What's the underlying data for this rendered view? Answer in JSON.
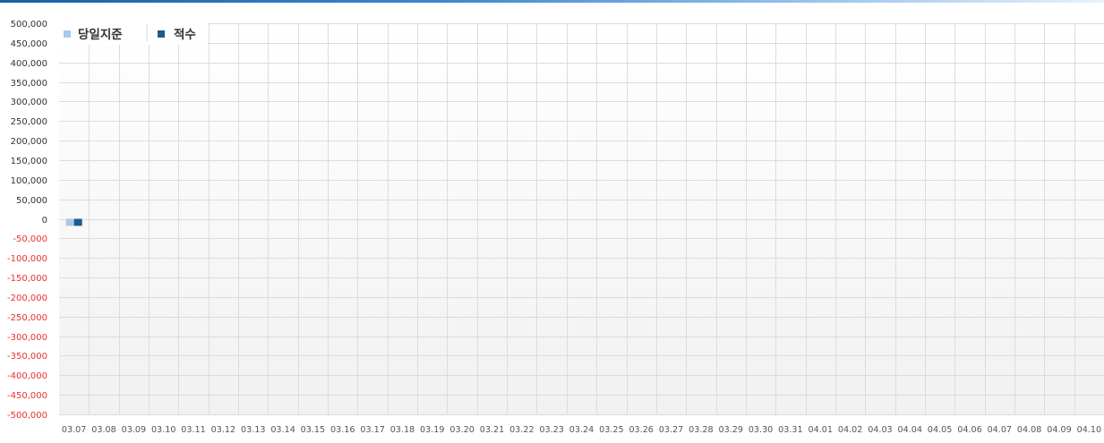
{
  "chart_data": {
    "type": "bar",
    "categories": [
      "03.07",
      "03.08",
      "03.09",
      "03.10",
      "03.11",
      "03.12",
      "03.13",
      "03.14",
      "03.15",
      "03.16",
      "03.17",
      "03.18",
      "03.19",
      "03.20",
      "03.21",
      "03.22",
      "03.23",
      "03.24",
      "03.25",
      "03.26",
      "03.27",
      "03.28",
      "03.29",
      "03.30",
      "03.31",
      "04.01",
      "04.02",
      "04.03",
      "04.04",
      "04.05",
      "04.06",
      "04.07",
      "04.08",
      "04.09",
      "04.10"
    ],
    "series": [
      {
        "name": "당일지준",
        "color": "#a9c9e8",
        "values": [
          -18000,
          null,
          null,
          null,
          null,
          null,
          null,
          null,
          null,
          null,
          null,
          null,
          null,
          null,
          null,
          null,
          null,
          null,
          null,
          null,
          null,
          null,
          null,
          null,
          null,
          null,
          null,
          null,
          null,
          null,
          null,
          null,
          null,
          null,
          null
        ]
      },
      {
        "name": "적수",
        "color": "#1f5a8c",
        "values": [
          -18000,
          null,
          null,
          null,
          null,
          null,
          null,
          null,
          null,
          null,
          null,
          null,
          null,
          null,
          null,
          null,
          null,
          null,
          null,
          null,
          null,
          null,
          null,
          null,
          null,
          null,
          null,
          null,
          null,
          null,
          null,
          null,
          null,
          null,
          null
        ]
      }
    ],
    "ylim": [
      -500000,
      500000
    ],
    "yticks": [
      500000,
      450000,
      400000,
      350000,
      300000,
      250000,
      200000,
      150000,
      100000,
      50000,
      0,
      -50000,
      -100000,
      -150000,
      -200000,
      -250000,
      -300000,
      -350000,
      -400000,
      -450000,
      -500000
    ],
    "ytick_labels": [
      "500,000",
      "450,000",
      "400,000",
      "350,000",
      "300,000",
      "250,000",
      "200,000",
      "150,000",
      "100,000",
      "50,000",
      "0",
      "-50,000",
      "-100,000",
      "-150,000",
      "-200,000",
      "-250,000",
      "-300,000",
      "-350,000",
      "-400,000",
      "-450,000",
      "-500,000"
    ],
    "grid": true,
    "legend_position": "top-left",
    "positive_tick_color": "#333333",
    "negative_tick_color": "#e8312f"
  }
}
